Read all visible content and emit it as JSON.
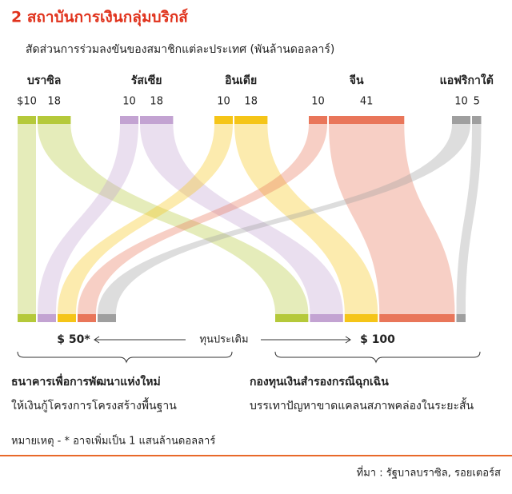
{
  "chart_data": {
    "type": "sankey",
    "title": "2 สถาบันการเงินกลุ่มบริกส์",
    "subtitle": "สัดส่วนการร่วมลงขันของสมาชิกแต่ละประเทศ (พันล้านดอลลาร์)",
    "categories": [
      "บราซิล",
      "รัสเซีย",
      "อินเดีย",
      "จีน",
      "แอฟริกาใต้"
    ],
    "colors": [
      "#b5c93a",
      "#c3a3d2",
      "#f5c518",
      "#e9765a",
      "#9f9f9f"
    ],
    "series": [
      {
        "name": "ธนาคารเพื่อการพัฒนาแห่งใหม่",
        "description": "ให้เงินกู้โครงการโครงสร้างพื้นฐาน",
        "values": [
          10,
          10,
          10,
          10,
          10
        ],
        "value_labels": [
          "$10",
          "10",
          "10",
          "10",
          "10"
        ],
        "total": 50,
        "total_label": "$ 50*"
      },
      {
        "name": "กองทุนเงินสำรองกรณีฉุกเฉิน",
        "description": "บรรเทาปัญหาขาดแคลนสภาพคล่องในระยะสั้น",
        "values": [
          18,
          18,
          18,
          41,
          5
        ],
        "total": 100,
        "total_label": "$ 100"
      }
    ],
    "center_label": "ทุนประเดิม",
    "note": "หมายเหตุ - * อาจเพิ่มเป็น 1 แสนล้านดอลลาร์",
    "source": "ที่มา : รัฐบาลบราซิล, รอยเตอร์ส"
  }
}
